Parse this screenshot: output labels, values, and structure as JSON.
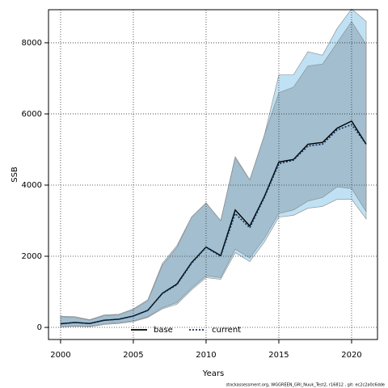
{
  "chart_data": {
    "type": "line",
    "x_label": "Years",
    "y_label": "SSB",
    "footnote": "stockassessment.org, WGGREEN_GRl_Nuuk_Test2, r16812 , git: ec2c2a0c6dde",
    "x": [
      2000,
      2001,
      2002,
      2003,
      2004,
      2005,
      2006,
      2007,
      2008,
      2009,
      2010,
      2011,
      2012,
      2013,
      2014,
      2015,
      2016,
      2017,
      2018,
      2019,
      2020,
      2021
    ],
    "xlim": [
      1999.17,
      2021.78
    ],
    "xticks": [
      2000,
      2005,
      2010,
      2015,
      2020
    ],
    "ylim": [
      -340,
      8930
    ],
    "yticks": [
      0,
      2000,
      4000,
      6000,
      8000
    ],
    "grid": true,
    "series": [
      {
        "name": "current",
        "color": "#0d2f5e",
        "band_color": "#bfe1f3",
        "dash": true,
        "values": [
          100,
          140,
          110,
          200,
          230,
          320,
          480,
          950,
          1200,
          1800,
          2250,
          2000,
          3200,
          2800,
          3650,
          4600,
          4700,
          5100,
          5150,
          5550,
          5700,
          5150
        ],
        "lower": [
          10,
          30,
          20,
          80,
          110,
          160,
          280,
          520,
          650,
          1050,
          1400,
          1350,
          2100,
          1850,
          2400,
          3100,
          3150,
          3350,
          3400,
          3600,
          3600,
          3050
        ],
        "upper": [
          320,
          300,
          220,
          350,
          370,
          520,
          780,
          1800,
          2300,
          3100,
          3500,
          3000,
          4750,
          4150,
          5400,
          7100,
          7100,
          7750,
          7650,
          8400,
          8950,
          8600
        ]
      },
      {
        "name": "base",
        "color": "#000000",
        "band_color": "#8aa3b0",
        "dash": false,
        "values": [
          100,
          140,
          110,
          200,
          230,
          320,
          480,
          960,
          1220,
          1820,
          2260,
          2020,
          3300,
          2850,
          3680,
          4650,
          4720,
          5150,
          5200,
          5600,
          5800,
          5150
        ],
        "lower": [
          20,
          40,
          30,
          100,
          130,
          180,
          300,
          550,
          700,
          1100,
          1450,
          1400,
          2200,
          1950,
          2500,
          3200,
          3300,
          3550,
          3650,
          3950,
          3900,
          3250
        ],
        "upper": [
          300,
          280,
          200,
          330,
          350,
          500,
          750,
          1750,
          2250,
          3100,
          3500,
          3000,
          4800,
          4150,
          5400,
          6600,
          6750,
          7350,
          7400,
          8000,
          8600,
          7950
        ]
      }
    ],
    "legend_order": [
      1,
      0
    ]
  }
}
